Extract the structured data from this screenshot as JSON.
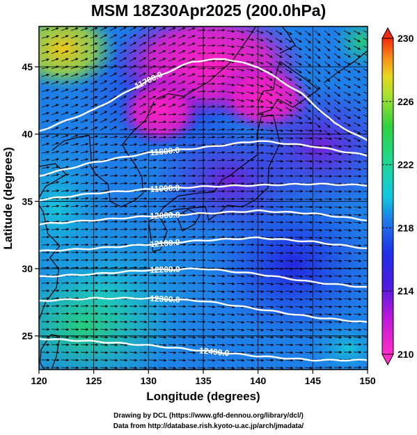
{
  "title": "MSM 18Z30Apr2025 (200.0hPa)",
  "x_axis": {
    "label": "Longitude (degrees)",
    "range": [
      120,
      150
    ],
    "ticks": [
      "120",
      "125",
      "130",
      "135",
      "140",
      "145",
      "150"
    ]
  },
  "y_axis": {
    "label": "Latitude  (degrees)",
    "range": [
      22.5,
      48
    ],
    "ticks": [
      "25",
      "30",
      "35",
      "40",
      "45"
    ]
  },
  "colorbar": {
    "range": [
      210,
      230
    ],
    "labels": [
      "210",
      "214",
      "218",
      "222",
      "226",
      "230"
    ],
    "colors": {
      "low": "#ff2fc8",
      "purple": "#8a10d8",
      "blue": "#2030e8",
      "cyan": "#10c8e0",
      "green": "#30d040",
      "yellow": "#d8e020",
      "high": "#f02a10"
    }
  },
  "contours": {
    "color": "#ffffff",
    "levels": [
      {
        "label": "11700.0",
        "lat_at_lon": [
          [
            120,
            40.2
          ],
          [
            125,
            41.8
          ],
          [
            130,
            44.0
          ],
          [
            134,
            45.4
          ],
          [
            137,
            45.6
          ],
          [
            140,
            45.0
          ],
          [
            144,
            43.0
          ],
          [
            147,
            40.8
          ],
          [
            150,
            39.5
          ]
        ]
      },
      {
        "label": "11800.0",
        "lat_at_lon": [
          [
            120,
            36.9
          ],
          [
            125,
            37.9
          ],
          [
            130,
            38.6
          ],
          [
            135,
            39.0
          ],
          [
            140,
            39.5
          ],
          [
            145,
            39.1
          ],
          [
            150,
            38.4
          ]
        ]
      },
      {
        "label": "11900.0",
        "lat_at_lon": [
          [
            120,
            35.1
          ],
          [
            125,
            35.6
          ],
          [
            130,
            35.9
          ],
          [
            135,
            36.1
          ],
          [
            140,
            36.2
          ],
          [
            145,
            36.3
          ],
          [
            150,
            36.2
          ]
        ]
      },
      {
        "label": "12000.0",
        "lat_at_lon": [
          [
            120,
            33.3
          ],
          [
            125,
            33.6
          ],
          [
            130,
            33.9
          ],
          [
            135,
            34.1
          ],
          [
            140,
            34.3
          ],
          [
            145,
            34.1
          ],
          [
            150,
            33.6
          ]
        ]
      },
      {
        "label": "12100.0",
        "lat_at_lon": [
          [
            120,
            31.3
          ],
          [
            125,
            31.5
          ],
          [
            130,
            31.8
          ],
          [
            135,
            32.1
          ],
          [
            140,
            32.3
          ],
          [
            145,
            32.0
          ],
          [
            150,
            31.5
          ]
        ]
      },
      {
        "label": "12200.0",
        "lat_at_lon": [
          [
            120,
            29.4
          ],
          [
            125,
            29.6
          ],
          [
            130,
            29.9
          ],
          [
            135,
            30.0
          ],
          [
            140,
            29.6
          ],
          [
            145,
            29.0
          ],
          [
            150,
            28.6
          ]
        ]
      },
      {
        "label": "12300.0",
        "lat_at_lon": [
          [
            120,
            27.6
          ],
          [
            125,
            27.8
          ],
          [
            130,
            27.8
          ],
          [
            135,
            27.6
          ],
          [
            140,
            27.0
          ],
          [
            145,
            26.4
          ],
          [
            150,
            26.0
          ]
        ]
      },
      {
        "label": "12400.0",
        "lat_at_lon": [
          [
            120,
            24.8
          ],
          [
            125,
            24.6
          ],
          [
            130,
            24.3
          ],
          [
            135,
            23.9
          ],
          [
            140,
            23.5
          ],
          [
            145,
            23.2
          ],
          [
            150,
            23.2
          ]
        ]
      }
    ]
  },
  "credits": {
    "line1": "Drawing by DCL (https://www.gfd-dennou.org/library/dcl/)",
    "line2": "Data from http://database.rish.kyoto-u.ac.jp/arch/jmadata/"
  }
}
